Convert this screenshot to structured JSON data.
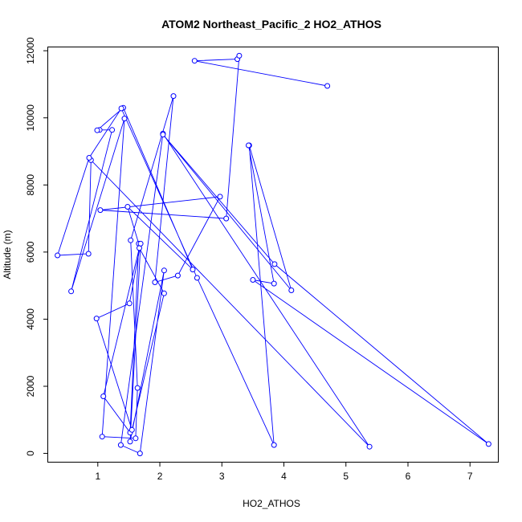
{
  "chart_data": {
    "type": "line",
    "title": "ATOM2 Northeast_Pacific_2 HO2_ATHOS",
    "xlabel": "HO2_ATHOS",
    "ylabel": "Altitude (m)",
    "xlim": [
      0.2,
      7.45
    ],
    "ylim": [
      -250,
      12100
    ],
    "x_ticks": [
      1,
      2,
      3,
      4,
      5,
      6,
      7
    ],
    "y_ticks": [
      0,
      2000,
      4000,
      6000,
      8000,
      10000,
      12000
    ],
    "grid": false,
    "marker": "open-circle",
    "color": "#0000ff",
    "series": [
      {
        "x": [
          4.7,
          2.56,
          3.25,
          3.28,
          3.07,
          1.04,
          2.97,
          2.29,
          1.92,
          2.22,
          1.53,
          1.64,
          1.61,
          1.07,
          1.43,
          0.57,
          1.23,
          1.03,
          0.99,
          1.41,
          2.53,
          1.48,
          1.66,
          1.52,
          1.09,
          1.67,
          2.07,
          1.55,
          0.98,
          1.51,
          1.69,
          1.52,
          2.07,
          1.68,
          1.37,
          2.05,
          5.38,
          0.89,
          0.85,
          0.35,
          0.86,
          1.38,
          2.6,
          3.84,
          3.44,
          4.12,
          2.05,
          3.85,
          7.3,
          3.5,
          3.84,
          3.43
        ],
        "y": [
          10950,
          11700,
          11750,
          11850,
          7000,
          7250,
          7650,
          5300,
          5100,
          10650,
          6350,
          1950,
          450,
          500,
          9980,
          4830,
          9640,
          9640,
          9630,
          10300,
          5480,
          7350,
          6250,
          620,
          1700,
          6120,
          4770,
          700,
          4020,
          4470,
          6250,
          350,
          5450,
          0,
          250,
          9530,
          200,
          8740,
          5950,
          5900,
          8810,
          10280,
          5230,
          250,
          9180,
          4860,
          9500,
          5640,
          280,
          5170,
          5060,
          9180
        ]
      }
    ]
  }
}
